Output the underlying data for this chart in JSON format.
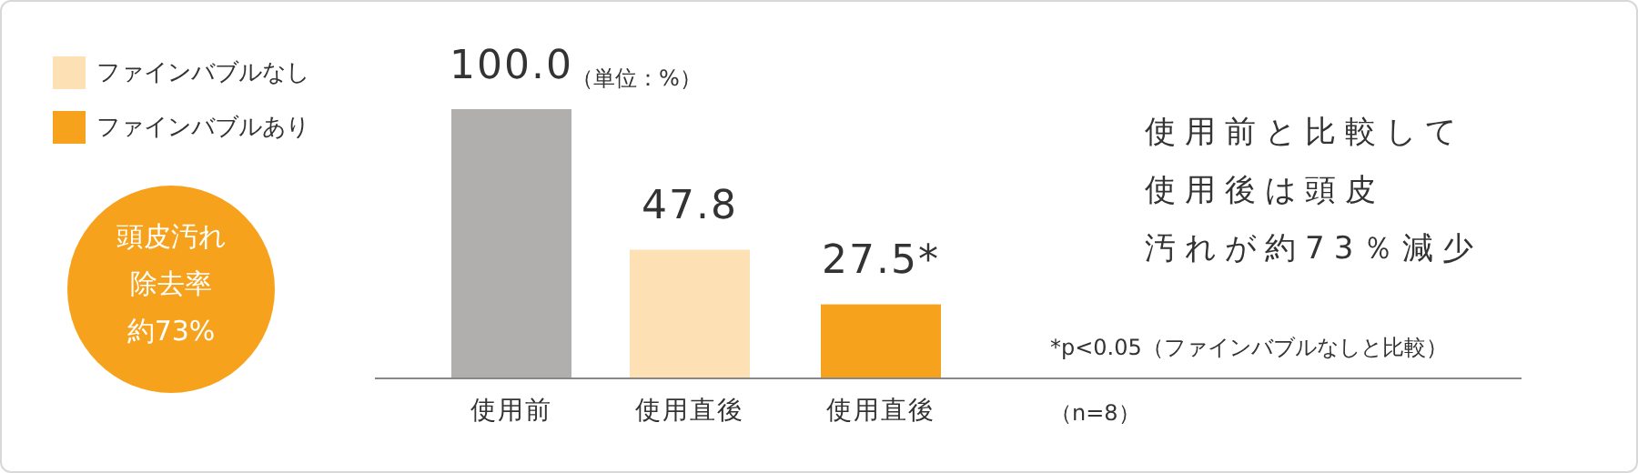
{
  "chart_data": {
    "type": "bar",
    "categories": [
      "使用前",
      "使用直後",
      "使用直後"
    ],
    "series": [
      {
        "color": "#b1aeae",
        "values": [
          100,
          null,
          null
        ],
        "value_labels": [
          "100.0",
          null,
          null
        ]
      },
      {
        "name": "ファインバブルなし",
        "color": "#fde0b3",
        "values": [
          null,
          47.8,
          null
        ],
        "value_labels": [
          null,
          "47.8",
          null
        ]
      },
      {
        "name": "ファインバブルあり",
        "color": "#f7a21d",
        "values": [
          null,
          null,
          27.5
        ],
        "value_labels": [
          null,
          null,
          "27.5*"
        ]
      }
    ],
    "legend": "top left",
    "annotations": [
      "頭皮汚れ",
      "除去率",
      "約73%",
      "使用前と比較して",
      "使用後は頭皮",
      "汚れが約73％減少",
      "（単位：%）",
      "*p<0.05（ファインバブルなしと比較）",
      "（n=8）"
    ]
  }
}
